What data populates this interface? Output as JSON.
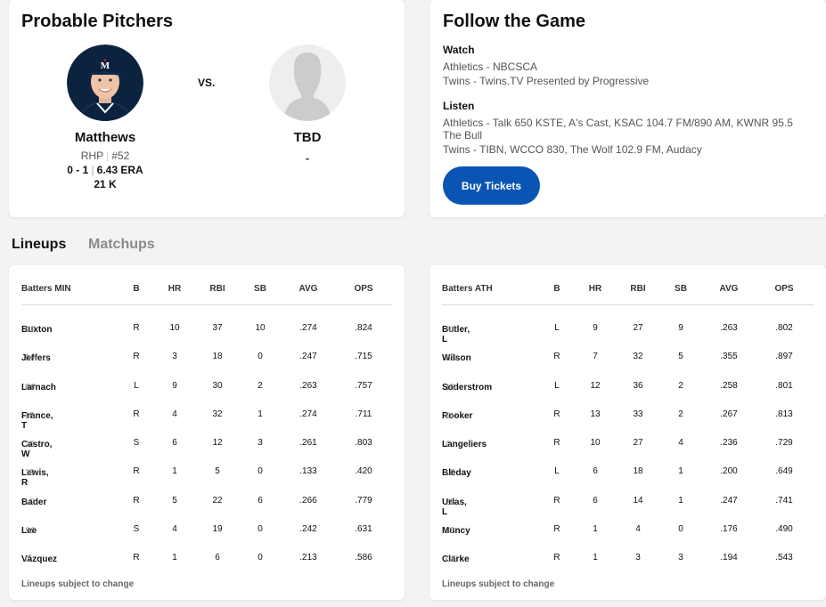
{
  "probable_pitchers": {
    "title": "Probable Pitchers",
    "vs": "VS.",
    "home": {
      "name": "Matthews",
      "throws": "RHP",
      "number": "#52",
      "record": "0 - 1",
      "era": "6.43 ERA",
      "strikeouts": "21 K"
    },
    "away": {
      "name": "TBD",
      "detail": "-"
    }
  },
  "follow": {
    "title": "Follow the Game",
    "watch_label": "Watch",
    "watch": [
      "Athletics - NBCSCA",
      "Twins - Twins.TV Presented by Progressive"
    ],
    "listen_label": "Listen",
    "listen": [
      "Athletics - Talk 650 KSTE, A's Cast, KSAC 104.7 FM/890 AM, KWNR 95.5 The Bull",
      "Twins - TIBN, WCCO 830, The Wolf 102.9 FM, Audacy"
    ],
    "buy_tickets": "Buy Tickets"
  },
  "tabs": {
    "lineups": "Lineups",
    "matchups": "Matchups"
  },
  "columns": [
    "B",
    "HR",
    "RBI",
    "SB",
    "AVG",
    "OPS"
  ],
  "lineups": [
    {
      "title": "Batters MIN",
      "note": "Lineups subject to change",
      "rows": [
        {
          "name": "Buxton",
          "pos": "CF",
          "b": "R",
          "hr": "10",
          "rbi": "37",
          "sb": "10",
          "avg": ".274",
          "ops": ".824"
        },
        {
          "name": "Jeffers",
          "pos": "DH",
          "b": "R",
          "hr": "3",
          "rbi": "18",
          "sb": "0",
          "avg": ".247",
          "ops": ".715"
        },
        {
          "name": "Larnach",
          "pos": "RF",
          "b": "L",
          "hr": "9",
          "rbi": "30",
          "sb": "2",
          "avg": ".263",
          "ops": ".757"
        },
        {
          "name": "France, T",
          "pos": "1B",
          "b": "R",
          "hr": "4",
          "rbi": "32",
          "sb": "1",
          "avg": ".274",
          "ops": ".711"
        },
        {
          "name": "Castro, W",
          "pos": "2B",
          "b": "S",
          "hr": "6",
          "rbi": "12",
          "sb": "3",
          "avg": ".261",
          "ops": ".803"
        },
        {
          "name": "Lewis, R",
          "pos": "3B",
          "b": "R",
          "hr": "1",
          "rbi": "5",
          "sb": "0",
          "avg": ".133",
          "ops": ".420"
        },
        {
          "name": "Bader",
          "pos": "LF",
          "b": "R",
          "hr": "5",
          "rbi": "22",
          "sb": "6",
          "avg": ".266",
          "ops": ".779"
        },
        {
          "name": "Lee",
          "pos": "SS",
          "b": "S",
          "hr": "4",
          "rbi": "19",
          "sb": "0",
          "avg": ".242",
          "ops": ".631"
        },
        {
          "name": "Vázquez",
          "pos": "C",
          "b": "R",
          "hr": "1",
          "rbi": "6",
          "sb": "0",
          "avg": ".213",
          "ops": ".586"
        }
      ]
    },
    {
      "title": "Batters ATH",
      "note": "Lineups subject to change",
      "rows": [
        {
          "name": "Butler, L",
          "pos": "RF",
          "b": "L",
          "hr": "9",
          "rbi": "27",
          "sb": "9",
          "avg": ".263",
          "ops": ".802"
        },
        {
          "name": "Wilson",
          "pos": "SS",
          "b": "R",
          "hr": "7",
          "rbi": "32",
          "sb": "5",
          "avg": ".355",
          "ops": ".897"
        },
        {
          "name": "Soderstrom",
          "pos": "1B",
          "b": "L",
          "hr": "12",
          "rbi": "36",
          "sb": "2",
          "avg": ".258",
          "ops": ".801"
        },
        {
          "name": "Rooker",
          "pos": "DH",
          "b": "R",
          "hr": "13",
          "rbi": "33",
          "sb": "2",
          "avg": ".267",
          "ops": ".813"
        },
        {
          "name": "Langeliers",
          "pos": "C",
          "b": "R",
          "hr": "10",
          "rbi": "27",
          "sb": "4",
          "avg": ".236",
          "ops": ".729"
        },
        {
          "name": "Bleday",
          "pos": "LF",
          "b": "L",
          "hr": "6",
          "rbi": "18",
          "sb": "1",
          "avg": ".200",
          "ops": ".649"
        },
        {
          "name": "Urías, L",
          "pos": "2B",
          "b": "R",
          "hr": "6",
          "rbi": "14",
          "sb": "1",
          "avg": ".247",
          "ops": ".741"
        },
        {
          "name": "Muncy",
          "pos": "3B",
          "b": "R",
          "hr": "1",
          "rbi": "4",
          "sb": "0",
          "avg": ".176",
          "ops": ".490"
        },
        {
          "name": "Clarke",
          "pos": "CF",
          "b": "R",
          "hr": "1",
          "rbi": "3",
          "sb": "3",
          "avg": ".194",
          "ops": ".543"
        }
      ]
    }
  ],
  "colors": {
    "accent": "#0a55b4",
    "twins_navy": "#0c2340",
    "twins_red": "#d31145",
    "placeholder": "#d6d6d6"
  },
  "icons": {
    "home_avatar": "player-headshot",
    "away_avatar": "silhouette-icon"
  }
}
